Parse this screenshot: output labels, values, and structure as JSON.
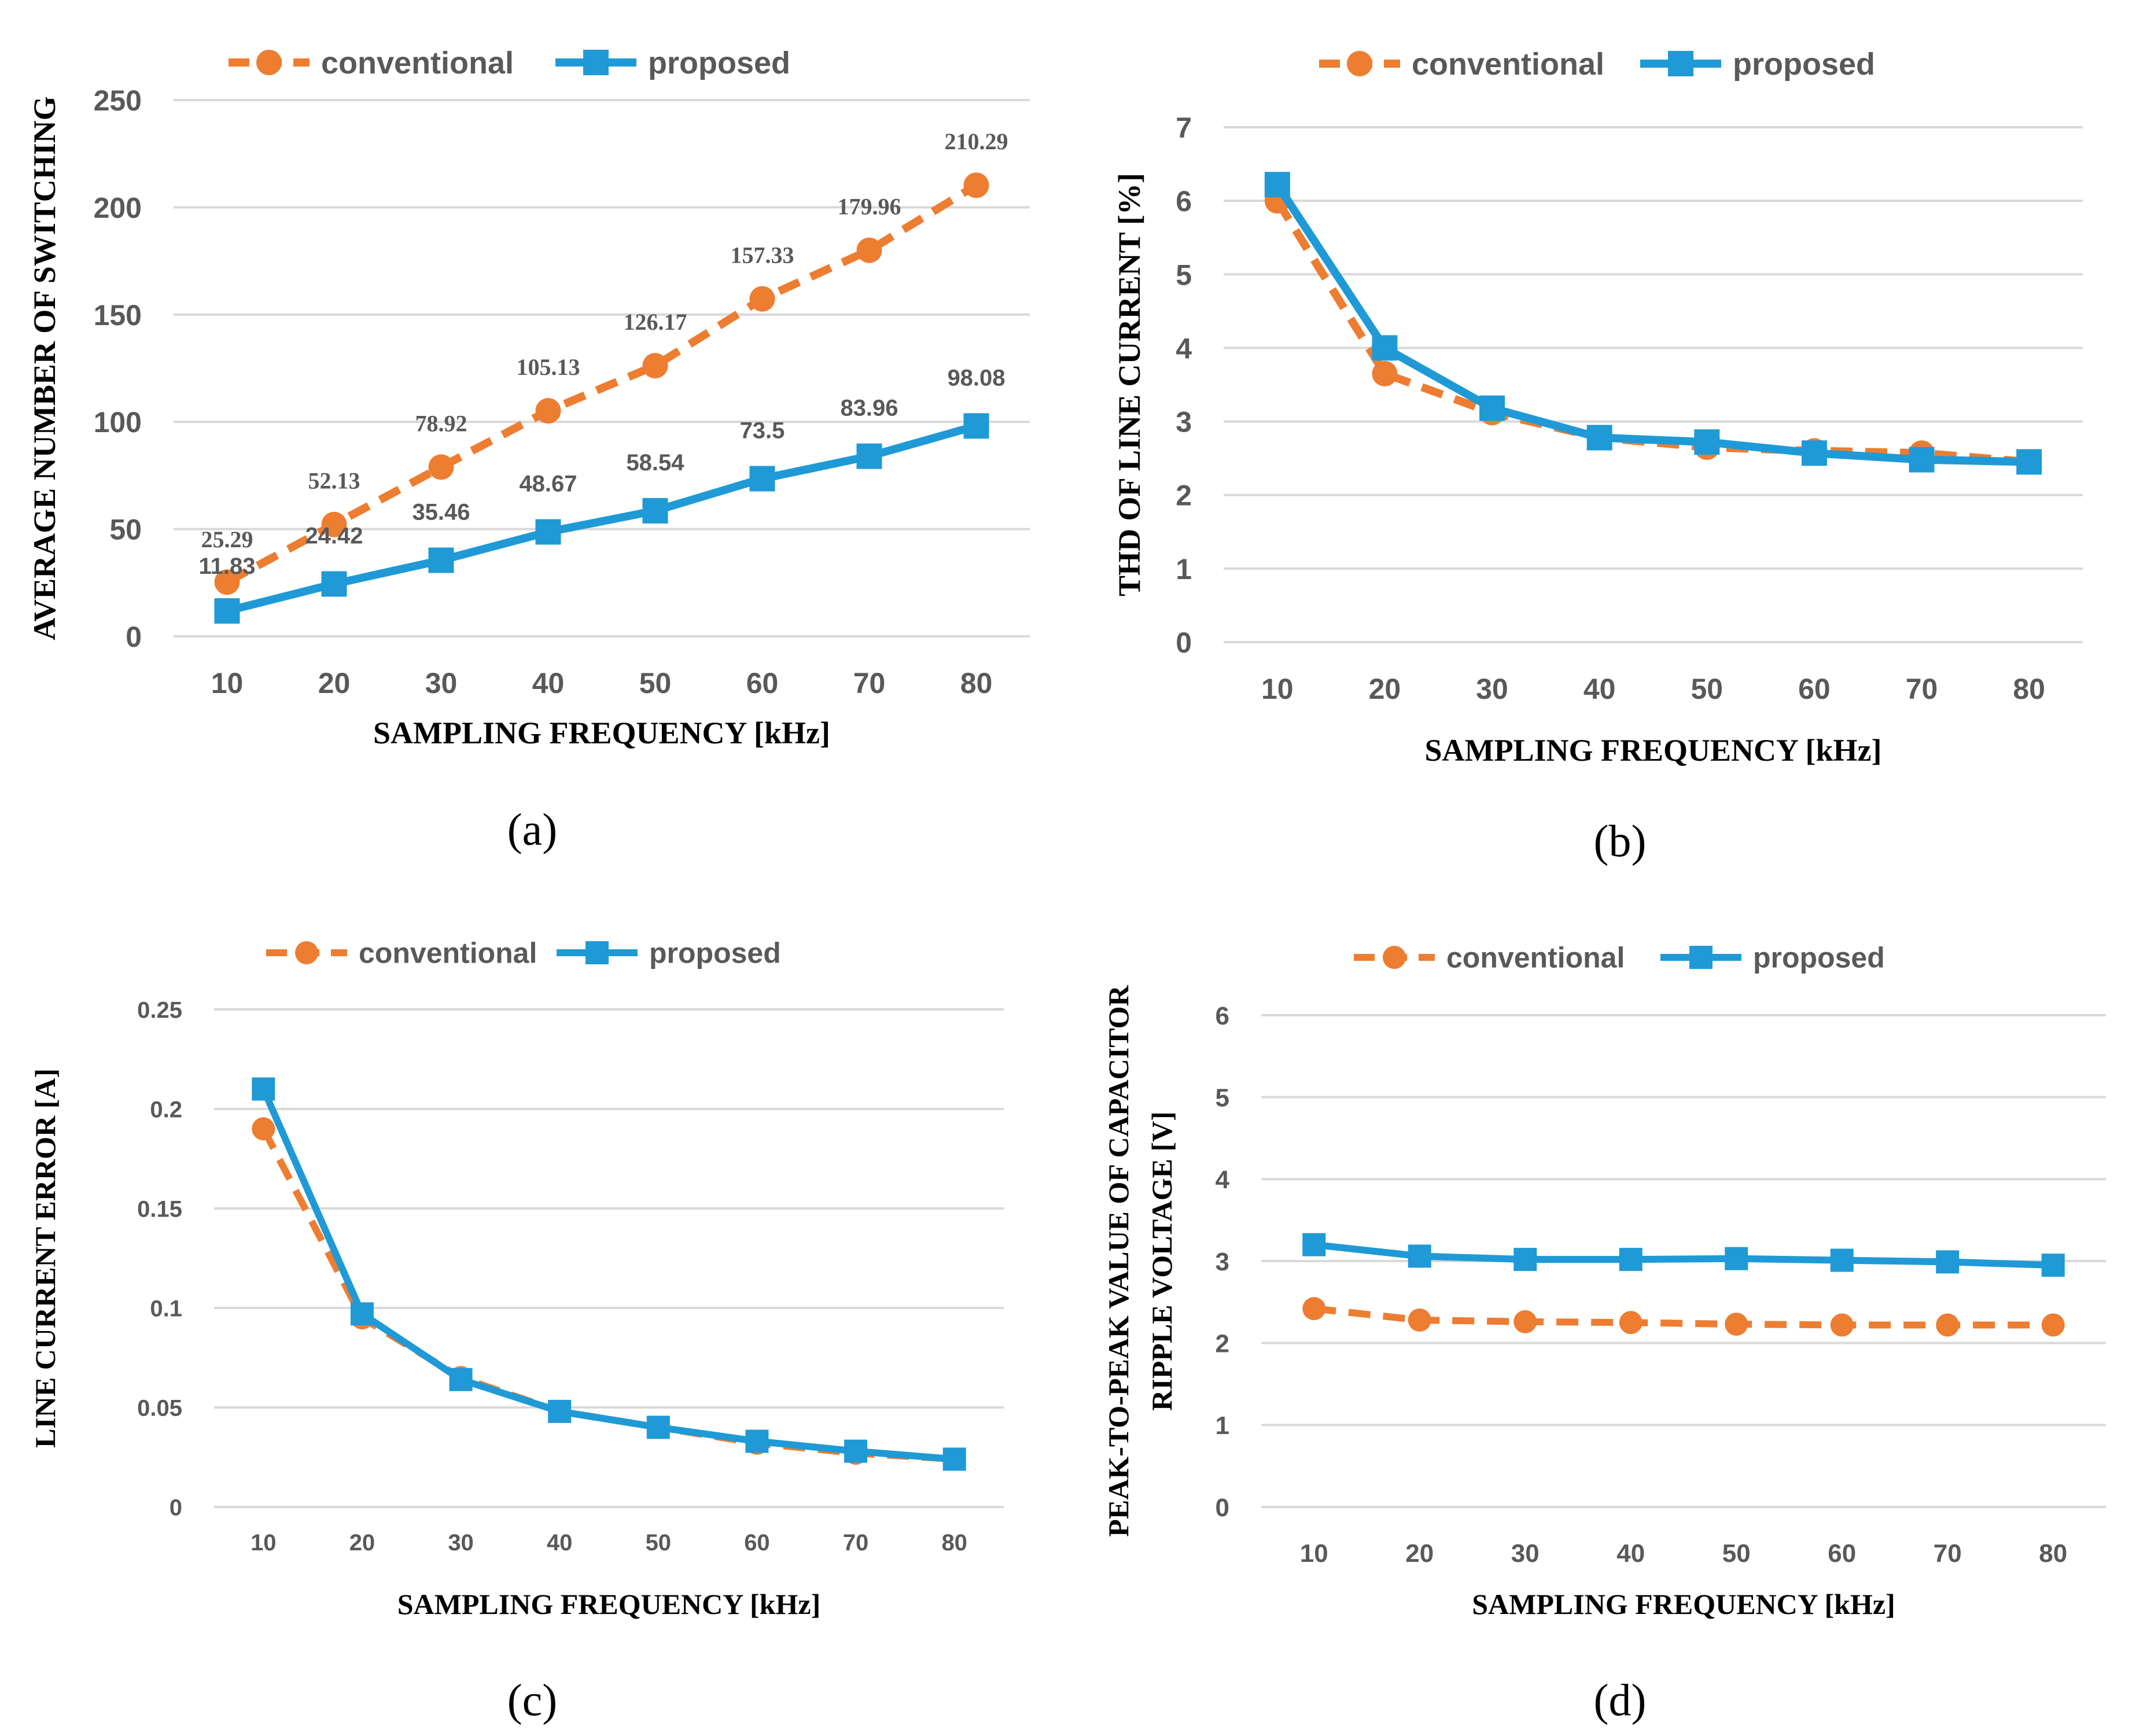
{
  "colors": {
    "conventional": "#ED7D31",
    "proposed": "#1F9AD6",
    "grid": "#D9D9D9",
    "tick": "#595959"
  },
  "legend": {
    "conventional": "conventional",
    "proposed": "proposed"
  },
  "chart_data": [
    {
      "type": "line",
      "panel_label": "(a)",
      "categories": [
        "10",
        "20",
        "30",
        "40",
        "50",
        "60",
        "70",
        "80"
      ],
      "series": [
        {
          "name": "conventional",
          "style": "dashed",
          "marker": "circle",
          "values": [
            25.29,
            52.13,
            78.92,
            105.13,
            126.17,
            157.33,
            179.96,
            210.29
          ],
          "labels": [
            "25.29",
            "52.13",
            "78.92",
            "105.13",
            "126.17",
            "157.33",
            "179.96",
            "210.29"
          ]
        },
        {
          "name": "proposed",
          "style": "solid",
          "marker": "square",
          "values": [
            11.83,
            24.42,
            35.46,
            48.67,
            58.54,
            73.5,
            83.96,
            98.08
          ],
          "labels": [
            "11.83",
            "24.42",
            "35.46",
            "48.67",
            "58.54",
            "73.5",
            "83.96",
            "98.08"
          ]
        }
      ],
      "ylim": [
        0,
        250
      ],
      "yticks": [
        "0",
        "50",
        "100",
        "150",
        "200",
        "250"
      ],
      "xlabel": "SAMPLING FREQUENCY [kHz]",
      "ylabel": [
        "AVERAGE NUMBER OF SWITCHING"
      ],
      "legend": "top",
      "grid": true
    },
    {
      "type": "line",
      "panel_label": "(b)",
      "categories": [
        "10",
        "20",
        "30",
        "40",
        "50",
        "60",
        "70",
        "80"
      ],
      "series": [
        {
          "name": "conventional",
          "style": "dashed",
          "marker": "circle",
          "values": [
            6.0,
            3.65,
            3.12,
            2.78,
            2.65,
            2.6,
            2.57,
            2.45
          ]
        },
        {
          "name": "proposed",
          "style": "solid",
          "marker": "square",
          "values": [
            6.22,
            4.0,
            3.18,
            2.78,
            2.72,
            2.57,
            2.48,
            2.45
          ]
        }
      ],
      "ylim": [
        0,
        7
      ],
      "yticks": [
        "0",
        "1",
        "2",
        "3",
        "4",
        "5",
        "6",
        "7"
      ],
      "xlabel": "SAMPLING FREQUENCY [kHz]",
      "ylabel": [
        "THD OF LINE CURRENT [%]"
      ],
      "legend": "top",
      "grid": true
    },
    {
      "type": "line",
      "panel_label": "(c)",
      "categories": [
        "10",
        "20",
        "30",
        "40",
        "50",
        "60",
        "70",
        "80"
      ],
      "series": [
        {
          "name": "conventional",
          "style": "dashed",
          "marker": "circle",
          "values": [
            0.19,
            0.095,
            0.065,
            0.048,
            0.04,
            0.032,
            0.027,
            0.024
          ]
        },
        {
          "name": "proposed",
          "style": "solid",
          "marker": "square",
          "values": [
            0.21,
            0.097,
            0.064,
            0.048,
            0.04,
            0.033,
            0.028,
            0.024
          ]
        }
      ],
      "ylim": [
        0,
        0.25
      ],
      "yticks": [
        "0",
        "0.05",
        "0.1",
        "0.15",
        "0.2",
        "0.25"
      ],
      "xlabel": "SAMPLING FREQUENCY [kHz]",
      "ylabel": [
        "LINE CURRENT ERROR [A]"
      ],
      "legend": "top",
      "grid": true
    },
    {
      "type": "line",
      "panel_label": "(d)",
      "categories": [
        "10",
        "20",
        "30",
        "40",
        "50",
        "60",
        "70",
        "80"
      ],
      "series": [
        {
          "name": "conventional",
          "style": "dashed",
          "marker": "circle",
          "values": [
            2.42,
            2.28,
            2.26,
            2.25,
            2.23,
            2.22,
            2.22,
            2.22
          ]
        },
        {
          "name": "proposed",
          "style": "solid",
          "marker": "square",
          "values": [
            3.2,
            3.06,
            3.02,
            3.02,
            3.03,
            3.01,
            2.99,
            2.95
          ]
        }
      ],
      "ylim": [
        0,
        6
      ],
      "yticks": [
        "0",
        "1",
        "2",
        "3",
        "4",
        "5",
        "6"
      ],
      "xlabel": "SAMPLING FREQUENCY [kHz]",
      "ylabel": [
        "PEAK-TO-PEAK VALUE OF CAPACITOR",
        "RIPPLE VOLTAGE [V]"
      ],
      "legend": "top",
      "grid": true
    }
  ]
}
